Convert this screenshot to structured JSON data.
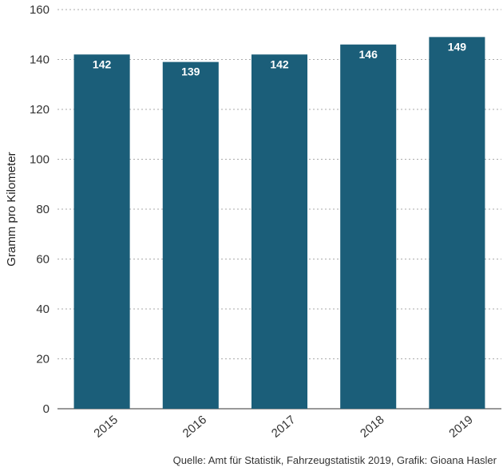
{
  "chart_data": {
    "type": "bar",
    "categories": [
      "2015",
      "2016",
      "2017",
      "2018",
      "2019"
    ],
    "values": [
      142,
      139,
      142,
      146,
      149
    ],
    "ylabel": "Gramm pro Kilometer",
    "xlabel": "",
    "ylim": [
      0,
      160
    ],
    "yticks": [
      0,
      20,
      40,
      60,
      80,
      100,
      120,
      140,
      160
    ],
    "grid": "horizontal dotted",
    "bar_color": "#1b5e79",
    "data_labels": true
  },
  "source": "Quelle: Amt für Statistik, Fahrzeugstatistik 2019, Grafik: Gioana Hasler"
}
